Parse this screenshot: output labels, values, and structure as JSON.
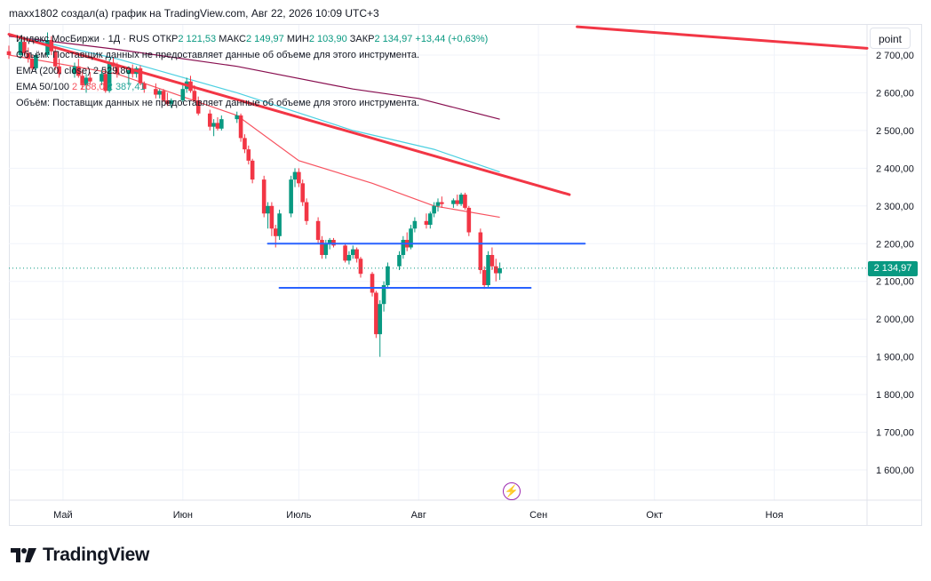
{
  "header": {
    "text": "maxx1802 создал(а) график на TradingView.com, Авг 22, 2026 10:09 UTC+3"
  },
  "legend": {
    "instrument": "Индекс МосБиржи · 1Д · RUS",
    "open_label": "ОТКР",
    "open": "2 121,53",
    "high_label": "МАКС",
    "high": "2 149,97",
    "low_label": "МИН",
    "low": "2 103,90",
    "close_label": "ЗАКР",
    "close": "2 134,97",
    "change": "+13,44 (+0,63%)",
    "volume_note_1": "Объём: Поставщик данных не предоставляет данные об объеме для этого инструмента.",
    "ema200_label": "EMA (200, close)",
    "ema200_value": "2 529,80",
    "ema_label": "EMA 50/100",
    "ema50_value": "2 268,0",
    "ema100_value": "2 387,41",
    "volume_note_2": "Объём: Поставщик данных не предоставляет данные об объеме для этого инструмента."
  },
  "toolbar": {
    "scale_button": "point"
  },
  "last_price_tag": "2 134,97",
  "branding": {
    "logo_text": "TradingView"
  },
  "colors": {
    "up": "#089981",
    "down": "#f23645",
    "trend": "#f23645",
    "level": "#2962ff",
    "ema200": "#880e4f",
    "ema100": "#4dd0e1",
    "ema50": "#f7525f"
  },
  "chart_data": {
    "type": "candlestick",
    "y_ticks": [
      "2 700,00",
      "2 600,00",
      "2 500,00",
      "2 400,00",
      "2 300,00",
      "2 200,00",
      "2 100,00",
      "2 000,00",
      "1 900,00",
      "1 800,00",
      "1 700,00",
      "1 600,00"
    ],
    "y_tick_values": [
      2700,
      2600,
      2500,
      2400,
      2300,
      2200,
      2100,
      2000,
      1900,
      1800,
      1700,
      1600
    ],
    "ylim": [
      1520,
      2780
    ],
    "x_ticks": [
      "Май",
      "Июн",
      "Июль",
      "Авг",
      "Сен",
      "Окт",
      "Ноя"
    ],
    "x_tick_dates": [
      "2026-05-01",
      "2026-06-01",
      "2026-07-01",
      "2026-08-01",
      "2026-09-01",
      "2026-10-01",
      "2026-11-01"
    ],
    "xlim": [
      "2026-04-17",
      "2026-11-25"
    ],
    "candles": [
      [
        "2026-04-17",
        2710,
        2725,
        2690,
        2700
      ],
      [
        "2026-04-20",
        2700,
        2745,
        2690,
        2735
      ],
      [
        "2026-04-21",
        2735,
        2740,
        2700,
        2705
      ],
      [
        "2026-04-22",
        2705,
        2720,
        2680,
        2690
      ],
      [
        "2026-04-23",
        2690,
        2700,
        2660,
        2665
      ],
      [
        "2026-04-24",
        2665,
        2705,
        2660,
        2700
      ],
      [
        "2026-04-27",
        2700,
        2760,
        2695,
        2740
      ],
      [
        "2026-04-28",
        2740,
        2750,
        2700,
        2710
      ],
      [
        "2026-04-29",
        2710,
        2720,
        2660,
        2670
      ],
      [
        "2026-04-30",
        2670,
        2690,
        2640,
        2650
      ],
      [
        "2026-05-04",
        2650,
        2680,
        2640,
        2670
      ],
      [
        "2026-05-05",
        2670,
        2690,
        2640,
        2645
      ],
      [
        "2026-05-06",
        2645,
        2660,
        2610,
        2620
      ],
      [
        "2026-05-07",
        2620,
        2650,
        2600,
        2640
      ],
      [
        "2026-05-08",
        2640,
        2655,
        2620,
        2630
      ],
      [
        "2026-05-11",
        2630,
        2660,
        2620,
        2650
      ],
      [
        "2026-05-12",
        2650,
        2665,
        2600,
        2605
      ],
      [
        "2026-05-13",
        2605,
        2690,
        2600,
        2680
      ],
      [
        "2026-05-14",
        2680,
        2695,
        2660,
        2670
      ],
      [
        "2026-05-15",
        2670,
        2680,
        2640,
        2650
      ],
      [
        "2026-05-18",
        2650,
        2670,
        2620,
        2660
      ],
      [
        "2026-05-19",
        2660,
        2675,
        2640,
        2650
      ],
      [
        "2026-05-20",
        2650,
        2670,
        2640,
        2665
      ],
      [
        "2026-05-21",
        2665,
        2672,
        2620,
        2625
      ],
      [
        "2026-05-22",
        2625,
        2630,
        2600,
        2610
      ],
      [
        "2026-05-25",
        2610,
        2625,
        2585,
        2595
      ],
      [
        "2026-05-26",
        2595,
        2610,
        2585,
        2605
      ],
      [
        "2026-05-27",
        2605,
        2610,
        2575,
        2580
      ],
      [
        "2026-05-28",
        2580,
        2600,
        2565,
        2570
      ],
      [
        "2026-05-29",
        2570,
        2585,
        2560,
        2580
      ],
      [
        "2026-06-01",
        2580,
        2620,
        2575,
        2610
      ],
      [
        "2026-06-02",
        2610,
        2640,
        2600,
        2630
      ],
      [
        "2026-06-03",
        2630,
        2645,
        2600,
        2605
      ],
      [
        "2026-06-04",
        2605,
        2620,
        2575,
        2580
      ],
      [
        "2026-06-05",
        2580,
        2590,
        2540,
        2545
      ],
      [
        "2026-06-08",
        2545,
        2555,
        2500,
        2510
      ],
      [
        "2026-06-09",
        2510,
        2530,
        2485,
        2520
      ],
      [
        "2026-06-10",
        2520,
        2535,
        2500,
        2505
      ],
      [
        "2026-06-11",
        2505,
        2540,
        2500,
        2530
      ],
      [
        "2026-06-15",
        2530,
        2550,
        2520,
        2540
      ],
      [
        "2026-06-16",
        2540,
        2545,
        2470,
        2480
      ],
      [
        "2026-06-17",
        2480,
        2490,
        2440,
        2450
      ],
      [
        "2026-06-18",
        2450,
        2460,
        2410,
        2420
      ],
      [
        "2026-06-19",
        2420,
        2425,
        2360,
        2370
      ],
      [
        "2026-06-22",
        2370,
        2380,
        2270,
        2280
      ],
      [
        "2026-06-23",
        2280,
        2310,
        2240,
        2300
      ],
      [
        "2026-06-24",
        2300,
        2310,
        2220,
        2240
      ],
      [
        "2026-06-25",
        2240,
        2250,
        2190,
        2220
      ],
      [
        "2026-06-26",
        2220,
        2290,
        2210,
        2280
      ],
      [
        "2026-06-29",
        2280,
        2380,
        2270,
        2370
      ],
      [
        "2026-06-30",
        2370,
        2400,
        2350,
        2390
      ],
      [
        "2026-07-01",
        2390,
        2400,
        2350,
        2360
      ],
      [
        "2026-07-02",
        2360,
        2370,
        2300,
        2310
      ],
      [
        "2026-07-03",
        2310,
        2320,
        2250,
        2260
      ],
      [
        "2026-07-06",
        2260,
        2270,
        2200,
        2210
      ],
      [
        "2026-07-07",
        2210,
        2220,
        2160,
        2170
      ],
      [
        "2026-07-08",
        2170,
        2210,
        2160,
        2200
      ],
      [
        "2026-07-09",
        2200,
        2215,
        2185,
        2210
      ],
      [
        "2026-07-10",
        2210,
        2215,
        2190,
        2195
      ],
      [
        "2026-07-13",
        2195,
        2200,
        2150,
        2155
      ],
      [
        "2026-07-14",
        2155,
        2180,
        2145,
        2170
      ],
      [
        "2026-07-15",
        2170,
        2195,
        2160,
        2185
      ],
      [
        "2026-07-16",
        2185,
        2190,
        2150,
        2160
      ],
      [
        "2026-07-17",
        2160,
        2165,
        2110,
        2120
      ],
      [
        "2026-07-20",
        2120,
        2125,
        2060,
        2070
      ],
      [
        "2026-07-21",
        2070,
        2075,
        1950,
        1960
      ],
      [
        "2026-07-22",
        1960,
        2050,
        1900,
        2040
      ],
      [
        "2026-07-23",
        2040,
        2100,
        2020,
        2090
      ],
      [
        "2026-07-24",
        2090,
        2150,
        2080,
        2140
      ],
      [
        "2026-07-27",
        2140,
        2180,
        2130,
        2170
      ],
      [
        "2026-07-28",
        2170,
        2220,
        2160,
        2210
      ],
      [
        "2026-07-29",
        2210,
        2230,
        2180,
        2190
      ],
      [
        "2026-07-30",
        2190,
        2250,
        2185,
        2240
      ],
      [
        "2026-07-31",
        2240,
        2270,
        2230,
        2260
      ],
      [
        "2026-08-03",
        2260,
        2280,
        2240,
        2250
      ],
      [
        "2026-08-04",
        2250,
        2285,
        2240,
        2280
      ],
      [
        "2026-08-05",
        2280,
        2310,
        2270,
        2300
      ],
      [
        "2026-08-06",
        2300,
        2320,
        2285,
        2310
      ],
      [
        "2026-08-07",
        2310,
        2325,
        2295,
        2305
      ],
      [
        "2026-08-10",
        2305,
        2320,
        2295,
        2315
      ],
      [
        "2026-08-11",
        2315,
        2330,
        2300,
        2305
      ],
      [
        "2026-08-12",
        2305,
        2335,
        2300,
        2330
      ],
      [
        "2026-08-13",
        2330,
        2335,
        2290,
        2295
      ],
      [
        "2026-08-14",
        2295,
        2300,
        2220,
        2230
      ],
      [
        "2026-08-17",
        2230,
        2240,
        2120,
        2130
      ],
      [
        "2026-08-18",
        2130,
        2140,
        2080,
        2090
      ],
      [
        "2026-08-19",
        2090,
        2180,
        2085,
        2170
      ],
      [
        "2026-08-20",
        2170,
        2190,
        2130,
        2140
      ],
      [
        "2026-08-21",
        2140,
        2160,
        2100,
        2121.53
      ],
      [
        "2026-08-22",
        2121.53,
        2149.97,
        2103.9,
        2134.97
      ]
    ],
    "ema200": [
      [
        "2026-04-17",
        2750
      ],
      [
        "2026-05-15",
        2715
      ],
      [
        "2026-06-15",
        2670
      ],
      [
        "2026-07-15",
        2610
      ],
      [
        "2026-08-01",
        2585
      ],
      [
        "2026-08-22",
        2530
      ]
    ],
    "ema100": [
      [
        "2026-04-17",
        2755
      ],
      [
        "2026-05-15",
        2690
      ],
      [
        "2026-06-15",
        2600
      ],
      [
        "2026-07-15",
        2500
      ],
      [
        "2026-08-05",
        2450
      ],
      [
        "2026-08-22",
        2390
      ]
    ],
    "ema50": [
      [
        "2026-04-17",
        2700
      ],
      [
        "2026-05-15",
        2650
      ],
      [
        "2026-06-15",
        2540
      ],
      [
        "2026-07-01",
        2420
      ],
      [
        "2026-07-20",
        2360
      ],
      [
        "2026-08-05",
        2300
      ],
      [
        "2026-08-22",
        2270
      ]
    ],
    "trendlines": [
      {
        "kind": "trend",
        "from": [
          "2026-04-17",
          2755
        ],
        "to": [
          "2026-09-09",
          2330
        ]
      },
      {
        "kind": "trend",
        "from": [
          "2026-09-11",
          2775
        ],
        "to": [
          "2026-11-25",
          2718
        ]
      },
      {
        "kind": "level",
        "from": [
          "2026-06-23",
          2200
        ],
        "to": [
          "2026-09-13",
          2200
        ]
      },
      {
        "kind": "level",
        "from": [
          "2026-06-26",
          2083
        ],
        "to": [
          "2026-08-30",
          2083
        ]
      }
    ],
    "last_price": 2134.97
  }
}
